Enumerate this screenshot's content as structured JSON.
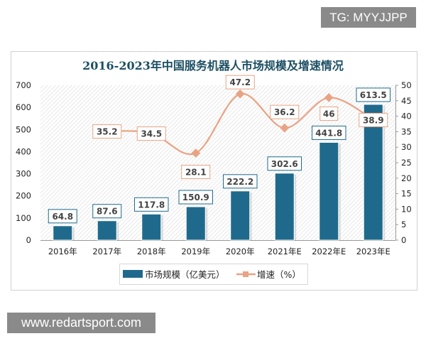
{
  "watermarks": {
    "top": "TG: MYYJJPP",
    "bottom": "www.redartsport.com"
  },
  "chart_data": {
    "type": "bar+line",
    "title": "2016-2023年中国服务机器人市场规模及增速情况",
    "categories": [
      "2016年",
      "2017年",
      "2018年",
      "2019年",
      "2020年",
      "2021年E",
      "2022年E",
      "2023年E"
    ],
    "series": [
      {
        "name": "市场规模（亿美元）",
        "type": "bar",
        "axis": "left",
        "color": "#1f6a8c",
        "values": [
          64.8,
          87.6,
          117.8,
          150.9,
          222.2,
          302.6,
          441.8,
          613.5
        ]
      },
      {
        "name": "增速（%）",
        "type": "line",
        "axis": "right",
        "color": "#e9a384",
        "values": [
          null,
          35.2,
          34.5,
          28.1,
          47.2,
          36.2,
          46,
          38.9
        ]
      }
    ],
    "y_left": {
      "min": 0,
      "max": 700,
      "ticks": [
        0,
        100,
        200,
        300,
        400,
        500,
        600,
        700
      ]
    },
    "y_right": {
      "min": 0,
      "max": 50,
      "ticks": [
        0,
        5,
        10,
        15,
        20,
        25,
        30,
        35,
        40,
        45,
        50
      ]
    },
    "legend": "bottom",
    "grid": false
  }
}
